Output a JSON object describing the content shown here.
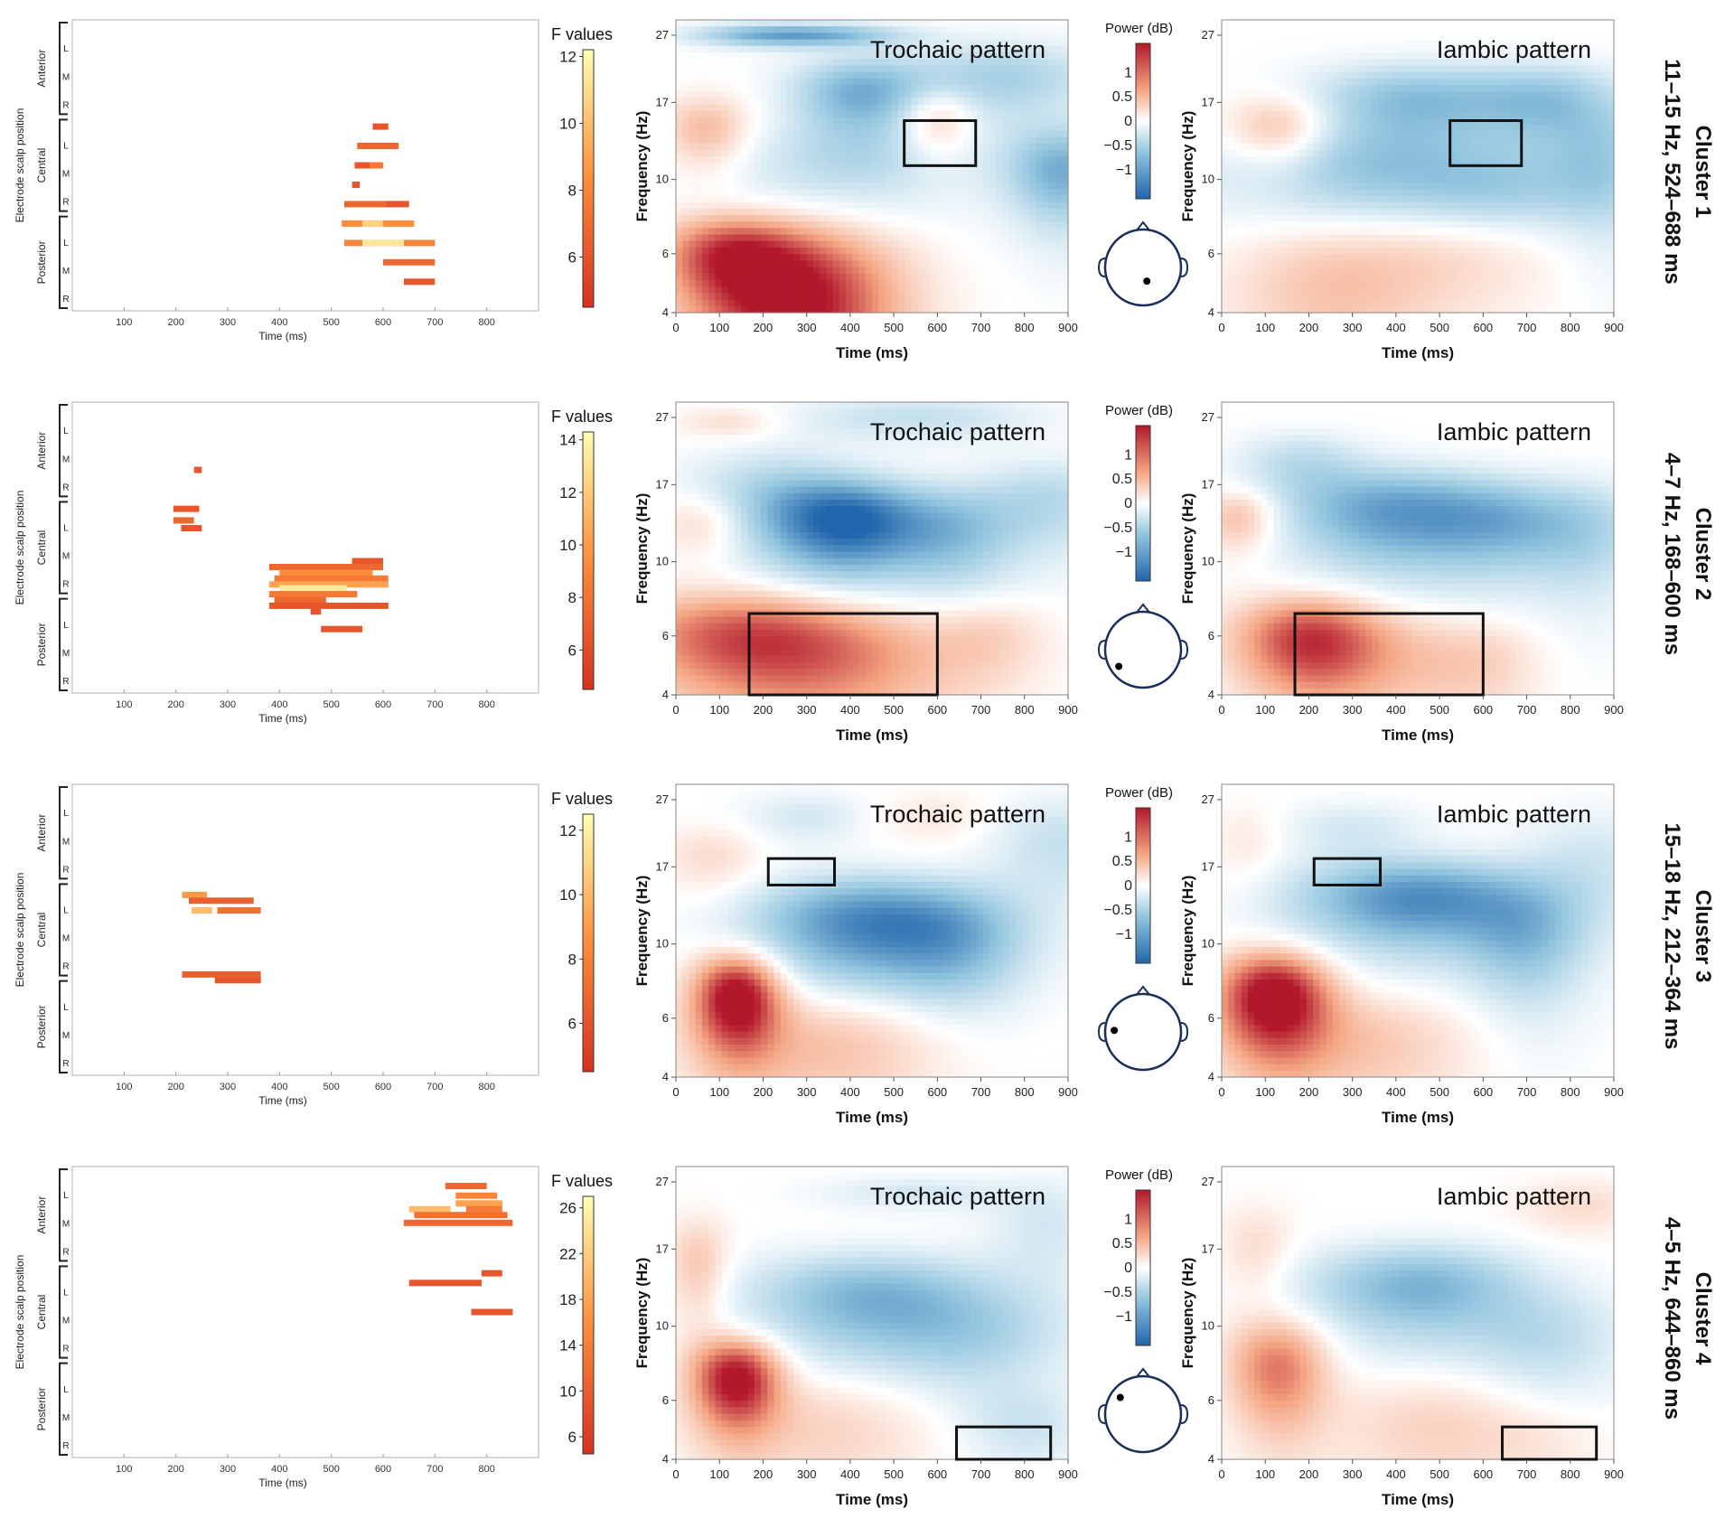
{
  "labels": {
    "f_values": "F values",
    "power": "Power (dB)",
    "frequency_axis": "Frequency (Hz)",
    "time_axis": "Time (ms)",
    "electrode_axis": "Electrode scalp position",
    "regions": [
      "Anterior",
      "Central",
      "Posterior"
    ],
    "lmr": [
      "L",
      "M",
      "R"
    ],
    "trochaic": "Trochaic pattern",
    "iambic": "Iambic pattern"
  },
  "ticks": {
    "raster_time": [
      "100",
      "200",
      "300",
      "400",
      "500",
      "600",
      "700",
      "800"
    ],
    "tf_time": [
      "0",
      "100",
      "200",
      "300",
      "400",
      "500",
      "600",
      "700",
      "800",
      "900"
    ],
    "tf_freq": [
      "4",
      "6",
      "10",
      "17",
      "27"
    ],
    "power": [
      "1",
      "0.5",
      "0",
      "−0.5",
      "−1"
    ]
  },
  "colors": {
    "heat_low": "#d7301f",
    "heat_mid": "#fc8d3c",
    "heat_high": "#ffffb2",
    "diverging_neg": "#2166ac",
    "diverging_pos": "#b2182b"
  },
  "chart_data": [
    {
      "type": "heatmap",
      "id": "cluster1",
      "cluster_title": "Cluster 1",
      "cluster_subtitle": "11–15 Hz, 524–688 ms",
      "window": {
        "f_min": 11,
        "f_max": 15,
        "t_min": 524,
        "t_max": 688
      },
      "f_ticks": [
        "12",
        "10",
        "8",
        "6"
      ],
      "f_range": [
        4.5,
        12.2
      ],
      "electrode": {
        "x": 0.55,
        "y": 0.68
      },
      "raster": [
        [
          5,
          580,
          610,
          0.2
        ],
        [
          6,
          550,
          630,
          0.3
        ],
        [
          7,
          545,
          575,
          0.2
        ],
        [
          7,
          575,
          600,
          0.4
        ],
        [
          8,
          540,
          555,
          0.2
        ],
        [
          9,
          525,
          605,
          0.3
        ],
        [
          9,
          605,
          650,
          0.2
        ],
        [
          10,
          520,
          660,
          0.5
        ],
        [
          10,
          560,
          600,
          0.8
        ],
        [
          11,
          525,
          700,
          0.45
        ],
        [
          11,
          560,
          640,
          0.9
        ],
        [
          12,
          600,
          700,
          0.3
        ],
        [
          13,
          640,
          700,
          0.2
        ]
      ],
      "troch": [
        [
          600,
          15,
          60,
          2.5,
          0.6
        ],
        [
          280,
          4.2,
          160,
          2.0,
          1.6
        ],
        [
          120,
          6,
          110,
          1.2,
          1.0
        ],
        [
          70,
          14,
          70,
          2.5,
          0.6
        ],
        [
          420,
          18,
          110,
          3.5,
          -0.9
        ],
        [
          750,
          20,
          160,
          4.0,
          -0.6
        ],
        [
          890,
          10.5,
          90,
          2.5,
          -0.9
        ],
        [
          400,
          11,
          220,
          2.5,
          -0.4
        ],
        [
          200,
          27,
          120,
          1.5,
          -0.8
        ],
        [
          380,
          27,
          120,
          1.5,
          -0.6
        ]
      ],
      "iamb": [
        [
          130,
          14,
          80,
          2.5,
          0.6
        ],
        [
          250,
          4.8,
          170,
          1.8,
          0.5
        ],
        [
          560,
          6,
          180,
          1.5,
          0.35
        ],
        [
          430,
          17,
          160,
          3.5,
          -0.8
        ],
        [
          750,
          17,
          130,
          3.5,
          -0.7
        ],
        [
          320,
          10.5,
          250,
          2.5,
          -0.6
        ],
        [
          880,
          11,
          90,
          3.5,
          -0.5
        ],
        [
          650,
          9,
          150,
          2.0,
          -0.4
        ]
      ]
    },
    {
      "type": "heatmap",
      "id": "cluster2",
      "cluster_title": "Cluster 2",
      "cluster_subtitle": "4–7 Hz, 168–600 ms",
      "window": {
        "f_min": 4,
        "f_max": 7,
        "t_min": 168,
        "t_max": 600
      },
      "f_ticks": [
        "14",
        "12",
        "10",
        "8",
        "6"
      ],
      "f_range": [
        4.5,
        14.3
      ],
      "electrode": {
        "x": 0.18,
        "y": 0.72
      },
      "raster": [
        [
          3,
          235,
          250,
          0.2
        ],
        [
          5,
          195,
          245,
          0.2
        ],
        [
          5.6,
          195,
          235,
          0.3
        ],
        [
          6,
          210,
          250,
          0.2
        ],
        [
          7.7,
          540,
          600,
          0.2
        ],
        [
          8,
          380,
          600,
          0.3
        ],
        [
          8.3,
          400,
          580,
          0.5
        ],
        [
          8.6,
          390,
          610,
          0.4
        ],
        [
          8.9,
          380,
          610,
          0.6
        ],
        [
          9.1,
          400,
          530,
          0.9
        ],
        [
          9.4,
          380,
          550,
          0.4
        ],
        [
          9.7,
          390,
          490,
          0.3
        ],
        [
          10,
          380,
          610,
          0.2
        ],
        [
          10.3,
          460,
          480,
          0.2
        ],
        [
          11.2,
          480,
          560,
          0.2
        ]
      ],
      "troch": [
        [
          150,
          6,
          200,
          1.5,
          1.0
        ],
        [
          380,
          5,
          220,
          1.6,
          0.7
        ],
        [
          60,
          13,
          70,
          2.0,
          0.4
        ],
        [
          400,
          13,
          130,
          3.0,
          -1.4
        ],
        [
          230,
          16,
          140,
          4.0,
          -0.5
        ],
        [
          640,
          12,
          100,
          3.0,
          -0.6
        ],
        [
          850,
          15,
          120,
          3.5,
          -0.5
        ],
        [
          720,
          6,
          90,
          1.2,
          0.3
        ],
        [
          120,
          26,
          80,
          2.0,
          0.3
        ],
        [
          550,
          27,
          200,
          3.0,
          -0.4
        ]
      ],
      "iamb": [
        [
          200,
          5.8,
          120,
          1.4,
          1.3
        ],
        [
          400,
          5.0,
          150,
          1.5,
          0.4
        ],
        [
          600,
          5,
          100,
          1.2,
          0.3
        ],
        [
          40,
          13.5,
          60,
          2.0,
          0.6
        ],
        [
          380,
          14,
          170,
          3.5,
          -1.0
        ],
        [
          650,
          13,
          140,
          3.0,
          -0.7
        ],
        [
          850,
          12,
          100,
          3.5,
          -0.4
        ],
        [
          180,
          20,
          100,
          3.0,
          -0.4
        ]
      ]
    },
    {
      "type": "heatmap",
      "id": "cluster3",
      "cluster_title": "Cluster 3",
      "cluster_subtitle": "15–18 Hz, 212–364 ms",
      "window": {
        "f_min": 15,
        "f_max": 18,
        "t_min": 212,
        "t_max": 364
      },
      "f_ticks": [
        "12",
        "10",
        "8",
        "6"
      ],
      "f_range": [
        4.5,
        12.5
      ],
      "electrode": {
        "x": 0.12,
        "y": 0.48
      },
      "raster": [
        [
          5.2,
          212,
          260,
          0.55
        ],
        [
          5.5,
          225,
          350,
          0.25
        ],
        [
          6,
          230,
          270,
          0.7
        ],
        [
          6,
          280,
          364,
          0.35
        ],
        [
          9.3,
          212,
          364,
          0.25
        ],
        [
          9.6,
          275,
          364,
          0.2
        ]
      ],
      "troch": [
        [
          140,
          7,
          70,
          1.6,
          1.7
        ],
        [
          350,
          5,
          220,
          1.5,
          0.6
        ],
        [
          80,
          18,
          80,
          3.0,
          0.3
        ],
        [
          430,
          11.5,
          180,
          3.0,
          -1.2
        ],
        [
          650,
          10,
          120,
          3.0,
          -0.6
        ],
        [
          880,
          20,
          120,
          5.0,
          -0.4
        ],
        [
          300,
          24,
          100,
          3.0,
          -0.3
        ],
        [
          600,
          24,
          100,
          3.0,
          0.2
        ]
      ],
      "iamb": [
        [
          120,
          7,
          90,
          1.7,
          1.7
        ],
        [
          300,
          5,
          200,
          1.5,
          0.5
        ],
        [
          60,
          20,
          60,
          4.0,
          0.2
        ],
        [
          450,
          13.5,
          200,
          3.0,
          -1.2
        ],
        [
          700,
          10,
          100,
          3.0,
          -0.6
        ],
        [
          850,
          18,
          120,
          5.0,
          -0.3
        ],
        [
          300,
          22,
          120,
          3.0,
          -0.3
        ]
      ]
    },
    {
      "type": "heatmap",
      "id": "cluster4",
      "cluster_title": "Cluster 4",
      "cluster_subtitle": "4–5 Hz, 644–860 ms",
      "window": {
        "f_min": 4,
        "f_max": 5,
        "t_min": 644,
        "t_max": 860
      },
      "f_ticks": [
        "26",
        "22",
        "18",
        "14",
        "10",
        "6"
      ],
      "f_range": [
        4.5,
        27
      ],
      "electrode": {
        "x": 0.2,
        "y": 0.28
      },
      "raster": [
        [
          0.5,
          720,
          800,
          0.3
        ],
        [
          1,
          740,
          820,
          0.45
        ],
        [
          1.4,
          740,
          830,
          0.6
        ],
        [
          1.7,
          650,
          730,
          0.7
        ],
        [
          1.7,
          760,
          830,
          0.4
        ],
        [
          2,
          660,
          840,
          0.35
        ],
        [
          2.4,
          640,
          850,
          0.3
        ],
        [
          5,
          790,
          830,
          0.2
        ],
        [
          5.5,
          650,
          790,
          0.2
        ],
        [
          7,
          770,
          850,
          0.2
        ]
      ],
      "troch": [
        [
          140,
          7,
          70,
          1.5,
          1.6
        ],
        [
          350,
          5,
          200,
          1.5,
          0.4
        ],
        [
          50,
          15,
          50,
          4.0,
          0.5
        ],
        [
          450,
          12,
          200,
          3.0,
          -0.9
        ],
        [
          700,
          9,
          150,
          2.5,
          -0.4
        ],
        [
          850,
          20,
          100,
          5.0,
          -0.3
        ],
        [
          550,
          25,
          150,
          2.0,
          -0.3
        ],
        [
          800,
          5,
          100,
          1.0,
          -0.3
        ]
      ],
      "iamb": [
        [
          130,
          7.5,
          80,
          2.0,
          1.0
        ],
        [
          500,
          5,
          180,
          1.5,
          0.4
        ],
        [
          450,
          13,
          180,
          3.0,
          -0.9
        ],
        [
          750,
          9,
          130,
          2.5,
          -0.4
        ],
        [
          820,
          23,
          100,
          3.0,
          0.3
        ],
        [
          80,
          17,
          60,
          4.0,
          0.3
        ],
        [
          750,
          4.5,
          100,
          0.8,
          0.15
        ]
      ]
    }
  ]
}
